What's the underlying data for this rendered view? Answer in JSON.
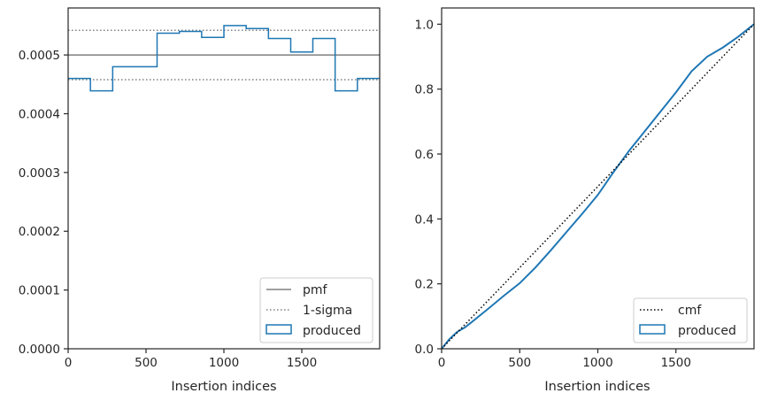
{
  "chart_data": [
    {
      "type": "histogram",
      "xlabel": "Insertion indices",
      "ylabel": "",
      "xlim": [
        0,
        2000
      ],
      "ylim": [
        0,
        0.00058
      ],
      "x_ticks": [
        0,
        500,
        1000,
        1500
      ],
      "y_ticks": [
        0.0,
        0.0001,
        0.0002,
        0.0003,
        0.0004,
        0.0005
      ],
      "y_tick_labels": [
        "0.0000",
        "0.0001",
        "0.0002",
        "0.0003",
        "0.0004",
        "0.0005"
      ],
      "lines": [
        {
          "name": "pmf",
          "y": 0.0005,
          "style": "solid",
          "color": "#808080"
        },
        {
          "name": "1-sigma",
          "y": 0.000542,
          "style": "dotted",
          "color": "#808080"
        },
        {
          "name": "1-sigma",
          "y": 0.000458,
          "style": "dotted",
          "color": "#808080"
        }
      ],
      "histogram": {
        "name": "produced",
        "color": "#1f77b4",
        "bin_edges": [
          0,
          143,
          286,
          429,
          571,
          714,
          857,
          1000,
          1143,
          1286,
          1429,
          1571,
          1714,
          1857,
          2000
        ],
        "values": [
          0.00046,
          0.000439,
          0.00048,
          0.00048,
          0.000537,
          0.00054,
          0.00053,
          0.00055,
          0.000545,
          0.000528,
          0.000505,
          0.000528,
          0.000439,
          0.00046
        ]
      },
      "legend": {
        "position": "lower-right",
        "entries": [
          {
            "label": "pmf",
            "kind": "line-solid",
            "color": "#808080"
          },
          {
            "label": "1-sigma",
            "kind": "line-dotted",
            "color": "#808080"
          },
          {
            "label": "produced",
            "kind": "patch",
            "color": "#1f77b4"
          }
        ]
      }
    },
    {
      "type": "line",
      "xlabel": "Insertion indices",
      "ylabel": "",
      "xlim": [
        0,
        2000
      ],
      "ylim": [
        0,
        1.05
      ],
      "x_ticks": [
        0,
        500,
        1000,
        1500
      ],
      "y_ticks": [
        0.0,
        0.2,
        0.4,
        0.6,
        0.8,
        1.0
      ],
      "y_tick_labels": [
        "0.0",
        "0.2",
        "0.4",
        "0.6",
        "0.8",
        "1.0"
      ],
      "series": [
        {
          "name": "cmf",
          "style": "dotted",
          "color": "#000000",
          "x": [
            0,
            2000
          ],
          "y": [
            0.0,
            1.0
          ]
        },
        {
          "name": "produced",
          "style": "solid",
          "color": "#1f77b4",
          "x": [
            0,
            50,
            100,
            150,
            200,
            300,
            400,
            500,
            600,
            700,
            800,
            900,
            1000,
            1100,
            1200,
            1300,
            1400,
            1500,
            1600,
            1700,
            1800,
            1900,
            2000
          ],
          "y": [
            0.0,
            0.03,
            0.052,
            0.066,
            0.085,
            0.124,
            0.164,
            0.202,
            0.25,
            0.304,
            0.36,
            0.416,
            0.474,
            0.544,
            0.61,
            0.67,
            0.73,
            0.79,
            0.855,
            0.9,
            0.928,
            0.962,
            1.0
          ]
        }
      ],
      "legend": {
        "position": "lower-right",
        "entries": [
          {
            "label": "cmf",
            "kind": "line-dotted",
            "color": "#000000"
          },
          {
            "label": "produced",
            "kind": "patch",
            "color": "#1f77b4"
          }
        ]
      }
    }
  ]
}
